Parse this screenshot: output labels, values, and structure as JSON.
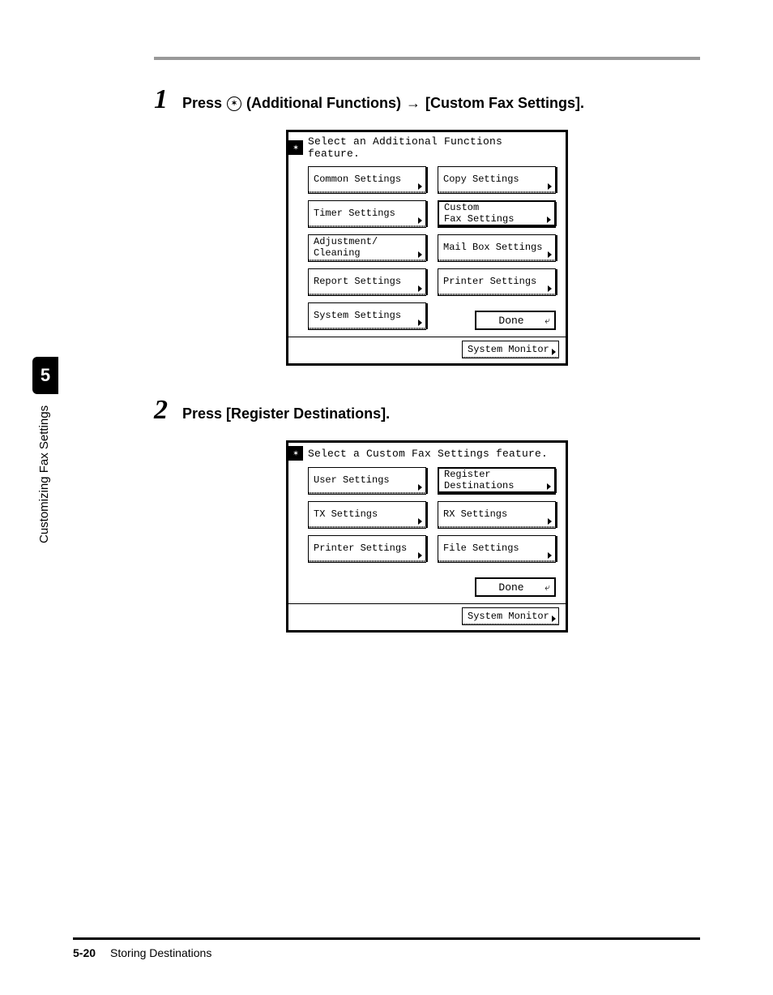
{
  "sidebar": {
    "chapter_number": "5",
    "chapter_title": "Customizing Fax Settings"
  },
  "steps": {
    "s1": {
      "num": "1",
      "text_prefix": "Press",
      "text_mid": "(Additional Functions)",
      "text_suffix": "[Custom Fax Settings]."
    },
    "s2": {
      "num": "2",
      "text": "Press [Register Destinations]."
    }
  },
  "screen1": {
    "title": "Select an Additional Functions feature.",
    "buttons": {
      "b0": "Common Settings",
      "b1": "Copy Settings",
      "b2": "Timer Settings",
      "b3a": "Custom",
      "b3b": "Fax Settings",
      "b4a": "Adjustment/",
      "b4b": "Cleaning",
      "b5": "Mail Box Settings",
      "b6": "Report Settings",
      "b7": "Printer Settings",
      "b8": "System Settings"
    },
    "done": "Done",
    "sysmon": "System Monitor"
  },
  "screen2": {
    "title": "Select a Custom Fax Settings feature.",
    "buttons": {
      "b0": "User Settings",
      "b1a": "Register",
      "b1b": "Destinations",
      "b2": "TX Settings",
      "b3": "RX Settings",
      "b4": "Printer Settings",
      "b5": "File Settings"
    },
    "done": "Done",
    "sysmon": "System Monitor"
  },
  "footer": {
    "page": "5-20",
    "section": "Storing Destinations"
  }
}
